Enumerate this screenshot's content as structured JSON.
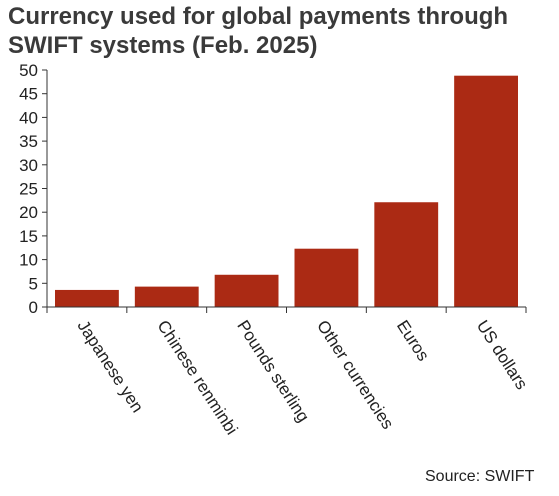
{
  "chart_data": {
    "type": "bar",
    "title": "Currency used for global payments through SWIFT systems (Feb. 2025)",
    "xlabel": "",
    "ylabel": "",
    "categories": [
      "Japanese yen",
      "Chinese renminbi",
      "Pounds sterling",
      "Other currencies",
      "Euros",
      "US dollars"
    ],
    "values": [
      3.6,
      4.3,
      6.8,
      12.3,
      22.1,
      48.8
    ],
    "ylim": [
      0,
      50
    ],
    "yticks": [
      0,
      5,
      10,
      15,
      20,
      25,
      30,
      35,
      40,
      45,
      50
    ],
    "grid": false,
    "bar_color": "#ab2a14"
  },
  "source": "Source: SWIFT"
}
